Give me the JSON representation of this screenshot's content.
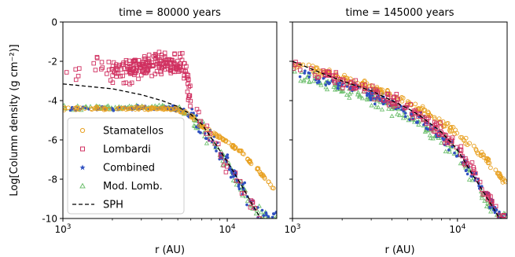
{
  "chart_data": [
    {
      "type": "scatter",
      "title": "time = 80000 years",
      "xlabel": "r (AU)",
      "ylabel": "Log[Column density (g cm⁻²)]",
      "xscale": "log",
      "xlim": [
        1000,
        20000
      ],
      "ylim": [
        -10,
        0
      ],
      "x_ticks": [
        {
          "value": 1000,
          "base": "10",
          "exp": "3"
        },
        {
          "value": 10000,
          "base": "10",
          "exp": "4"
        }
      ],
      "y_ticks": [
        0,
        -2,
        -4,
        -6,
        -8,
        -10
      ],
      "legend": {
        "position": "lower-left",
        "entries": [
          "Stamatellos",
          "Lombardi",
          "Combined",
          "Mod. Lomb.",
          "SPH"
        ]
      },
      "series": [
        {
          "name": "Stamatellos",
          "marker": "circle",
          "color": "#e8a020",
          "x": [
            1000,
            2000,
            3000,
            4000,
            5000,
            6000,
            7000,
            8000,
            10000,
            12000,
            15000,
            18000,
            20000
          ],
          "y": [
            -4.4,
            -4.4,
            -4.4,
            -4.4,
            -4.45,
            -4.8,
            -5.3,
            -5.6,
            -6.1,
            -6.6,
            -7.4,
            -8.2,
            -8.6
          ]
        },
        {
          "name": "Lombardi",
          "marker": "square",
          "color": "#d03060",
          "x": [
            1000,
            1500,
            2000,
            2500,
            3000,
            3500,
            4000,
            4500,
            5000,
            5500,
            6000,
            7000,
            8000,
            10000,
            12000,
            14000,
            16000
          ],
          "y": [
            -2.6,
            -2.3,
            -2.4,
            -2.5,
            -2.3,
            -2.2,
            -2.1,
            -2.1,
            -2.2,
            -2.3,
            -4.0,
            -5.2,
            -6.0,
            -7.3,
            -8.3,
            -9.2,
            -10.0
          ]
        },
        {
          "name": "Combined",
          "marker": "star",
          "color": "#3050c0",
          "x": [
            1000,
            2000,
            3000,
            4000,
            5000,
            6000,
            7000,
            8000,
            10000,
            12000,
            14000,
            16000
          ],
          "y": [
            -4.4,
            -4.4,
            -4.4,
            -4.4,
            -4.4,
            -4.8,
            -5.4,
            -6.0,
            -7.2,
            -8.3,
            -9.2,
            -10.0
          ]
        },
        {
          "name": "Mod. Lomb.",
          "marker": "triangle",
          "color": "#70c070",
          "x": [
            1000,
            2000,
            3000,
            4000,
            5000,
            6000,
            7000,
            8000,
            10000,
            12000,
            14000,
            16000
          ],
          "y": [
            -4.35,
            -4.35,
            -4.35,
            -4.35,
            -4.38,
            -4.8,
            -5.4,
            -6.0,
            -7.2,
            -8.3,
            -9.2,
            -10.0
          ]
        },
        {
          "name": "SPH",
          "marker": "dashed-line",
          "color": "#000000",
          "x": [
            1000,
            2000,
            3000,
            4000,
            5000,
            6000,
            7000,
            8000,
            10000,
            12000,
            14000,
            16000
          ],
          "y": [
            -3.15,
            -3.4,
            -3.7,
            -4.0,
            -4.3,
            -4.7,
            -5.2,
            -5.9,
            -7.1,
            -8.2,
            -9.2,
            -10.0
          ]
        }
      ]
    },
    {
      "type": "scatter",
      "title": "time = 145000 years",
      "xlabel": "r (AU)",
      "xscale": "log",
      "xlim": [
        1000,
        20000
      ],
      "ylim": [
        -10,
        0
      ],
      "x_ticks": [
        {
          "value": 1000,
          "base": "10",
          "exp": "3"
        },
        {
          "value": 10000,
          "base": "10",
          "exp": "4"
        }
      ],
      "series": [
        {
          "name": "Stamatellos",
          "marker": "circle",
          "color": "#e8a020",
          "x": [
            1000,
            1500,
            2000,
            3000,
            4000,
            5000,
            6000,
            8000,
            10000,
            12000,
            15000,
            20000
          ],
          "y": [
            -2.1,
            -2.5,
            -2.8,
            -3.3,
            -3.7,
            -4.1,
            -4.4,
            -5.1,
            -5.7,
            -6.3,
            -7.0,
            -8.2
          ]
        },
        {
          "name": "Lombardi",
          "marker": "square",
          "color": "#d03060",
          "x": [
            1000,
            1500,
            2000,
            3000,
            4000,
            5000,
            6000,
            8000,
            10000,
            12000,
            15000,
            18000
          ],
          "y": [
            -2.2,
            -2.7,
            -3.0,
            -3.5,
            -4.0,
            -4.4,
            -4.8,
            -5.6,
            -6.4,
            -7.4,
            -8.7,
            -10.0
          ]
        },
        {
          "name": "Combined",
          "marker": "star",
          "color": "#3050c0",
          "x": [
            1000,
            1500,
            2000,
            3000,
            4000,
            5000,
            6000,
            8000,
            10000,
            12000,
            15000,
            18000
          ],
          "y": [
            -2.4,
            -2.9,
            -3.2,
            -3.7,
            -4.2,
            -4.6,
            -5.0,
            -5.8,
            -6.6,
            -7.6,
            -8.9,
            -10.0
          ]
        },
        {
          "name": "Mod. Lomb.",
          "marker": "triangle",
          "color": "#70c070",
          "x": [
            1000,
            1500,
            2000,
            3000,
            4000,
            5000,
            6000,
            8000,
            10000,
            12000,
            15000,
            18000
          ],
          "y": [
            -2.6,
            -3.1,
            -3.4,
            -3.9,
            -4.4,
            -4.8,
            -5.2,
            -6.0,
            -6.8,
            -7.8,
            -9.1,
            -10.0
          ]
        },
        {
          "name": "SPH",
          "marker": "dashed-line",
          "color": "#000000",
          "x": [
            1000,
            1500,
            2000,
            3000,
            4000,
            5000,
            6000,
            8000,
            10000,
            12000,
            15000,
            18000
          ],
          "y": [
            -2.0,
            -2.6,
            -3.0,
            -3.5,
            -4.0,
            -4.4,
            -4.8,
            -5.6,
            -6.5,
            -7.6,
            -8.9,
            -10.0
          ]
        }
      ]
    }
  ]
}
